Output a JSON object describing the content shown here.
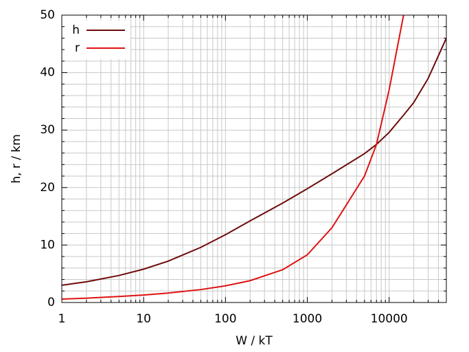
{
  "chart_data": {
    "type": "line",
    "xscale": "log",
    "grid": true,
    "legend": "upper left",
    "x_label": "W / kT",
    "y_label": "h, r / km",
    "x": [
      1,
      2,
      5,
      10,
      20,
      50,
      100,
      200,
      500,
      1000,
      2000,
      5000,
      7000,
      10000,
      15000,
      20000,
      30000,
      50000
    ],
    "series": [
      {
        "name": "h",
        "color": "#6e0a0a",
        "values": [
          3.0,
          3.6,
          4.7,
          5.8,
          7.2,
          9.6,
          11.8,
          14.2,
          17.3,
          19.8,
          22.4,
          25.9,
          27.5,
          29.6,
          32.6,
          34.8,
          39,
          46
        ]
      },
      {
        "name": "r",
        "color": "#e01010",
        "values": [
          0.6,
          0.75,
          1.05,
          1.3,
          1.65,
          2.25,
          2.9,
          3.8,
          5.7,
          8.3,
          13,
          22,
          27.5,
          37,
          50,
          null,
          null,
          null
        ]
      }
    ],
    "xlim": [
      1,
      50000
    ],
    "xticks": [
      1,
      10,
      100,
      1000,
      10000
    ],
    "xminorticks": [
      2,
      3,
      4,
      5,
      6,
      7,
      8,
      9,
      20,
      30,
      40,
      50,
      60,
      70,
      80,
      90,
      200,
      300,
      400,
      500,
      600,
      700,
      800,
      900,
      2000,
      3000,
      4000,
      5000,
      6000,
      7000,
      8000,
      9000,
      20000,
      30000,
      40000
    ],
    "ylim": [
      0,
      50
    ],
    "yticks": [
      0,
      10,
      20,
      30,
      40,
      50
    ],
    "yminorticks": [
      2,
      4,
      6,
      8,
      12,
      14,
      16,
      18,
      22,
      24,
      26,
      28,
      32,
      34,
      36,
      38,
      42,
      44,
      46,
      48
    ]
  }
}
